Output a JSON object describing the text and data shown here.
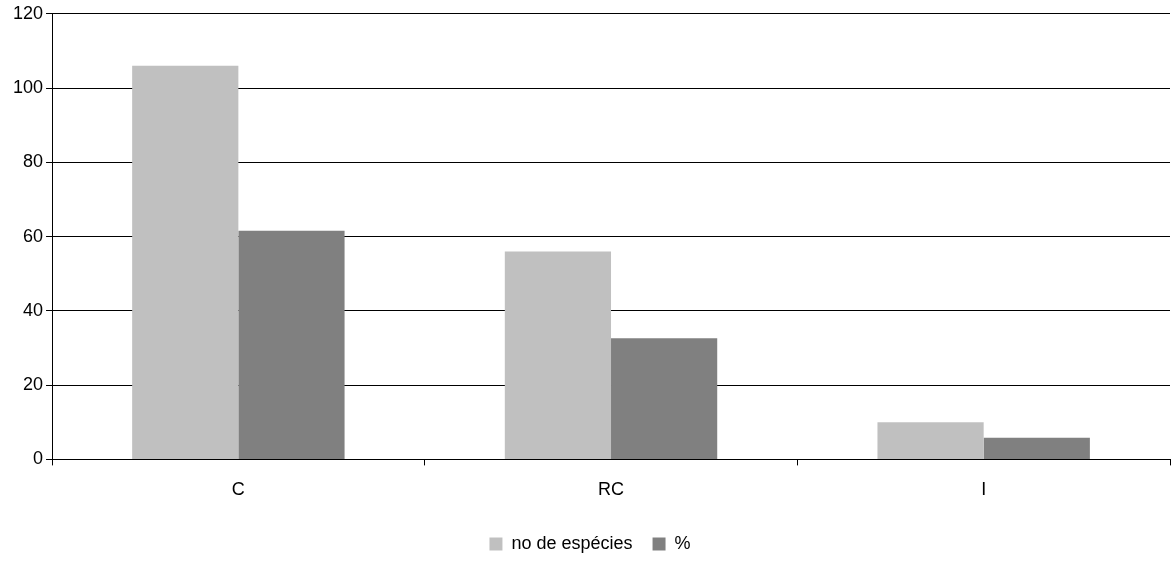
{
  "chart_data": {
    "type": "bar",
    "categories": [
      "C",
      "RC",
      "I"
    ],
    "series": [
      {
        "name": "no de espécies",
        "color": "#c0c0c0",
        "values": [
          106,
          56,
          10
        ]
      },
      {
        "name": "%",
        "color": "#808080",
        "values": [
          61.6,
          32.6,
          5.8
        ]
      }
    ],
    "ylim": [
      0,
      120
    ],
    "yticks": [
      0,
      20,
      40,
      60,
      80,
      100,
      120
    ],
    "grid": "y",
    "legend": "bottom"
  }
}
